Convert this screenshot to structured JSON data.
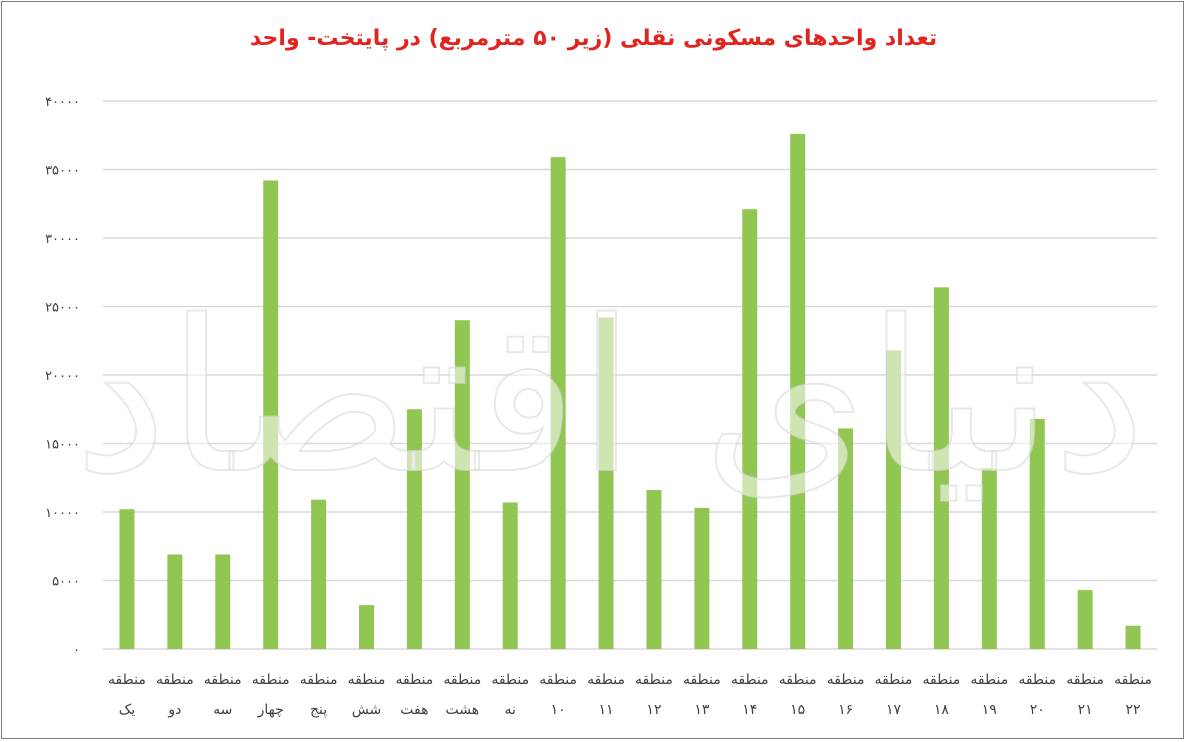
{
  "chart_data": {
    "type": "bar",
    "title": "تعداد واحدهای مسکونی نقلی (زیر ۵۰ مترمربع) در پایتخت- واحد",
    "categories": [
      [
        "منطقه",
        "یک"
      ],
      [
        "منطقه",
        "دو"
      ],
      [
        "منطقه",
        "سه"
      ],
      [
        "منطقه",
        "چهار"
      ],
      [
        "منطقه",
        "پنج"
      ],
      [
        "منطقه",
        "شش"
      ],
      [
        "منطقه",
        "هفت"
      ],
      [
        "منطقه",
        "هشت"
      ],
      [
        "منطقه",
        "نه"
      ],
      [
        "منطقه",
        "۱۰"
      ],
      [
        "منطقه",
        "۱۱"
      ],
      [
        "منطقه",
        "۱۲"
      ],
      [
        "منطقه",
        "۱۳"
      ],
      [
        "منطقه",
        "۱۴"
      ],
      [
        "منطقه",
        "۱۵"
      ],
      [
        "منطقه",
        "۱۶"
      ],
      [
        "منطقه",
        "۱۷"
      ],
      [
        "منطقه",
        "۱۸"
      ],
      [
        "منطقه",
        "۱۹"
      ],
      [
        "منطقه",
        "۲۰"
      ],
      [
        "منطقه",
        "۲۱"
      ],
      [
        "منطقه",
        "۲۲"
      ]
    ],
    "values": [
      10200,
      6900,
      6900,
      34200,
      10900,
      3200,
      17500,
      24000,
      10700,
      35900,
      24200,
      11600,
      10300,
      32100,
      37600,
      16100,
      21800,
      26400,
      13200,
      16800,
      4300,
      1700
    ],
    "yticks": [
      "۰",
      "۵۰۰۰",
      "۱۰۰۰۰",
      "۱۵۰۰۰",
      "۲۰۰۰۰",
      "۲۵۰۰۰",
      "۳۰۰۰۰",
      "۳۵۰۰۰",
      "۴۰۰۰۰"
    ],
    "ylim": [
      0,
      40000
    ],
    "grid": true,
    "bar_color": "#92c653",
    "grid_color": "#d9d9d9",
    "title_color": "#e1241f"
  },
  "watermark": "دنیای اقتصاد"
}
